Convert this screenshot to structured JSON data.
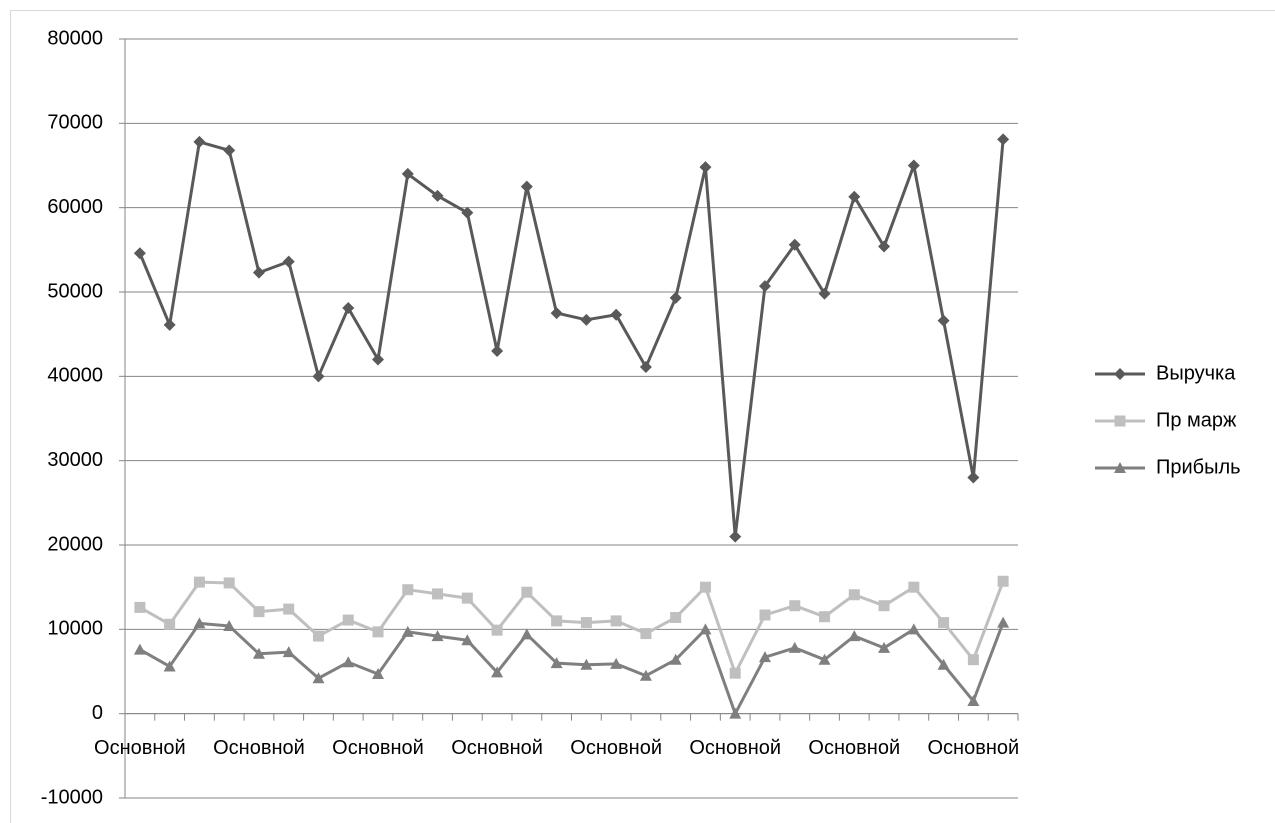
{
  "chart_data": {
    "type": "line",
    "categories": [
      "Основной",
      null,
      null,
      null,
      "Основной",
      null,
      null,
      null,
      "Основной",
      null,
      null,
      null,
      "Основной",
      null,
      null,
      null,
      "Основной",
      null,
      null,
      null,
      "Основной",
      null,
      null,
      null,
      "Основной",
      null,
      null,
      null,
      "Основной",
      null
    ],
    "series": [
      {
        "name": "Выручка",
        "color": "#595959",
        "marker": "diamond",
        "values": [
          54600,
          46100,
          67800,
          66800,
          52300,
          53600,
          40000,
          48100,
          42000,
          64000,
          61400,
          59400,
          43000,
          62500,
          47500,
          46700,
          47300,
          41100,
          49300,
          64800,
          21000,
          50700,
          55600,
          49800,
          61300,
          55400,
          65000,
          46600,
          28000,
          68100
        ]
      },
      {
        "name": "Пр марж",
        "color": "#bfbfbf",
        "marker": "square",
        "values": [
          12600,
          10600,
          15600,
          15500,
          12100,
          12400,
          9200,
          11100,
          9700,
          14700,
          14200,
          13700,
          9900,
          14400,
          11000,
          10800,
          11000,
          9500,
          11400,
          15000,
          4800,
          11700,
          12800,
          11500,
          14100,
          12800,
          15000,
          10800,
          6400,
          15700
        ]
      },
      {
        "name": "Прибыль",
        "color": "#7f7f7f",
        "marker": "triangle",
        "values": [
          7600,
          5600,
          10700,
          10400,
          7100,
          7300,
          4200,
          6100,
          4700,
          9700,
          9200,
          8700,
          4900,
          9400,
          6000,
          5800,
          5900,
          4500,
          6400,
          10000,
          0,
          6700,
          7800,
          6400,
          9200,
          7800,
          10000,
          5800,
          1500,
          10800
        ]
      }
    ],
    "ylim": [
      -10000,
      80000
    ],
    "yticks": [
      -10000,
      0,
      10000,
      20000,
      30000,
      40000,
      50000,
      60000,
      70000,
      80000
    ],
    "grid": true,
    "legend": "right"
  }
}
